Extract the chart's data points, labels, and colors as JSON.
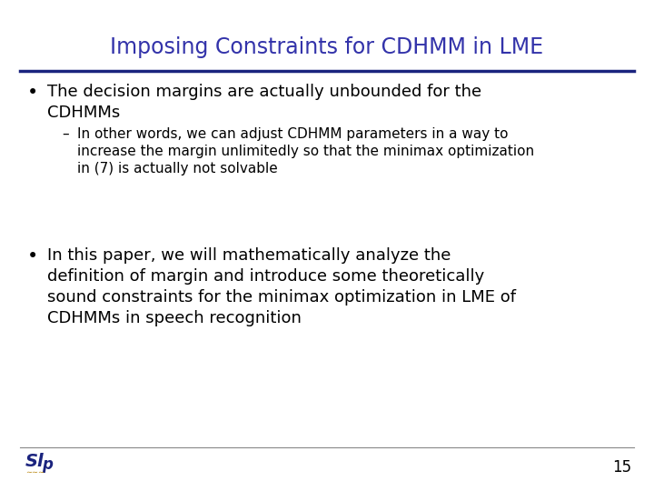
{
  "title": "Imposing Constraints for CDHMM in LME",
  "title_color": "#3333AA",
  "title_fontsize": 17,
  "separator_color": "#1A237E",
  "bg_color": "#FFFFFF",
  "bullet1_main": "The decision margins are actually unbounded for the\nCDHMMs",
  "bullet1_sub": "In other words, we can adjust CDHMM parameters in a way to\nincrease the margin unlimitedly so that the minimax optimization\nin (7) is actually not solvable",
  "bullet2_main": "In this paper, we will mathematically analyze the\ndefinition of margin and introduce some theoretically\nsound constraints for the minimax optimization in LME of\nCDHMMs in speech recognition",
  "text_color": "#000000",
  "bullet_fontsize": 13,
  "sub_fontsize": 11,
  "page_number": "15",
  "logo_color_main": "#1A237E",
  "logo_color_accent": "#B8860B"
}
